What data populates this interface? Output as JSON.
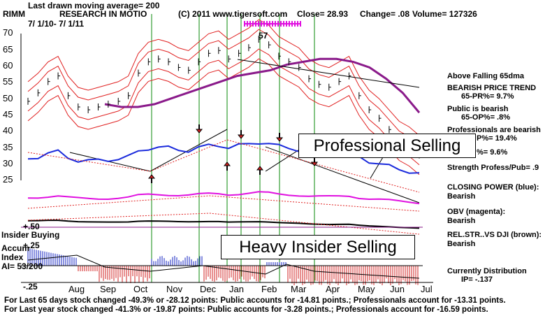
{
  "header": {
    "ma_note": "Last drawn moving average= 200",
    "symbol": "RIMM",
    "company": "RESEARCH IN MOTIO",
    "copyright": "(C) 2011 www.tigersoft.com",
    "close": "Close=  28.93",
    "change": "Change= .08",
    "volume": "Volume= 127326",
    "date_range": "7/ 1/10- 7/ 1/11"
  },
  "chart_data": {
    "type": "line",
    "title": "RESEARCH IN MOTIO",
    "price_axis": {
      "ticks": [
        "70",
        "65",
        "60",
        "55",
        "50",
        "45",
        "40",
        "35",
        "30",
        "25"
      ],
      "range": [
        20,
        72
      ]
    },
    "x_months": [
      "Aug",
      "Sep",
      "Oct",
      "Nov",
      "Dec",
      "Jan",
      "Feb",
      "Mar",
      "Apr",
      "May",
      "Jun",
      "Jul"
    ],
    "price_close_approx": [
      48,
      51,
      55,
      57,
      50,
      46,
      45,
      46,
      47,
      48,
      50,
      58,
      62,
      63,
      62,
      60,
      59,
      62,
      65,
      66,
      63,
      65,
      67,
      70,
      68,
      64,
      62,
      60,
      56,
      54,
      53,
      55,
      57,
      50,
      45,
      42,
      38,
      34,
      32,
      29
    ],
    "ma_200_approx": [
      47,
      46,
      46,
      47,
      49,
      51,
      53,
      55,
      57,
      58,
      59,
      61,
      62,
      63,
      63,
      62,
      60,
      56,
      51,
      44
    ],
    "closing_power_series": "blue",
    "obv_series": "magenta",
    "relative_strength_series": "brown",
    "accumulation_index": {
      "axis_ticks": [
        "+.50",
        "+.25",
        "-.25"
      ],
      "current_AI": "-.137"
    },
    "marker_57": "57",
    "insider_buying_label": "Insider Buying",
    "annotations": [
      "Professional Selling",
      "Heavy Insider Selling"
    ]
  },
  "side_panel": {
    "trend": "Above Falling 65dma",
    "bearish_trend_title": "BEARISH PRICE TREND",
    "pr65": "65-PR%= 9.7%",
    "public": "Public is bearish",
    "op65": "65-OP%= .8%",
    "professionals": "Professionals are bearish",
    "pp_partial": "P%= 19.4%",
    "partial_pct": "%= 9.6%",
    "strength": "Strength Profess/Pub= .9",
    "closing_power_title": "CLOSING POWER (blue):",
    "closing_power_value": "Bearish",
    "obv_title": "OBV (magenta):",
    "obv_value": "Bearish",
    "rel_str_title": "REL.STR..VS DJI (brown):",
    "rel_str_value": "Bearish",
    "accum_label": "Accum",
    "index_label": "Index",
    "ai_value": "AI= 53/200",
    "distribution_title": "Currently Distribution",
    "ip_value": "IP= -.137"
  },
  "footer": {
    "line1": "For Last 65 days stock changed -49.3% or -28.12 points:  Public accounts for -14.81 points.;  Professionals account for -13.31 points.",
    "line2": "For Last year stock changed -41.3% or -19.87 points:  Public accounts for -3.28 points.;  Professionals account for -16.59 points."
  },
  "colors": {
    "price": "#000000",
    "ma": "#8a1a8a",
    "bands": "#e02020",
    "cp": "#1a2adc",
    "obv": "#e010e0",
    "relstr": "#000000",
    "accum_pos": "#1020c0",
    "accum_neg": "#d02020",
    "verticals": "#0a8a0a"
  }
}
